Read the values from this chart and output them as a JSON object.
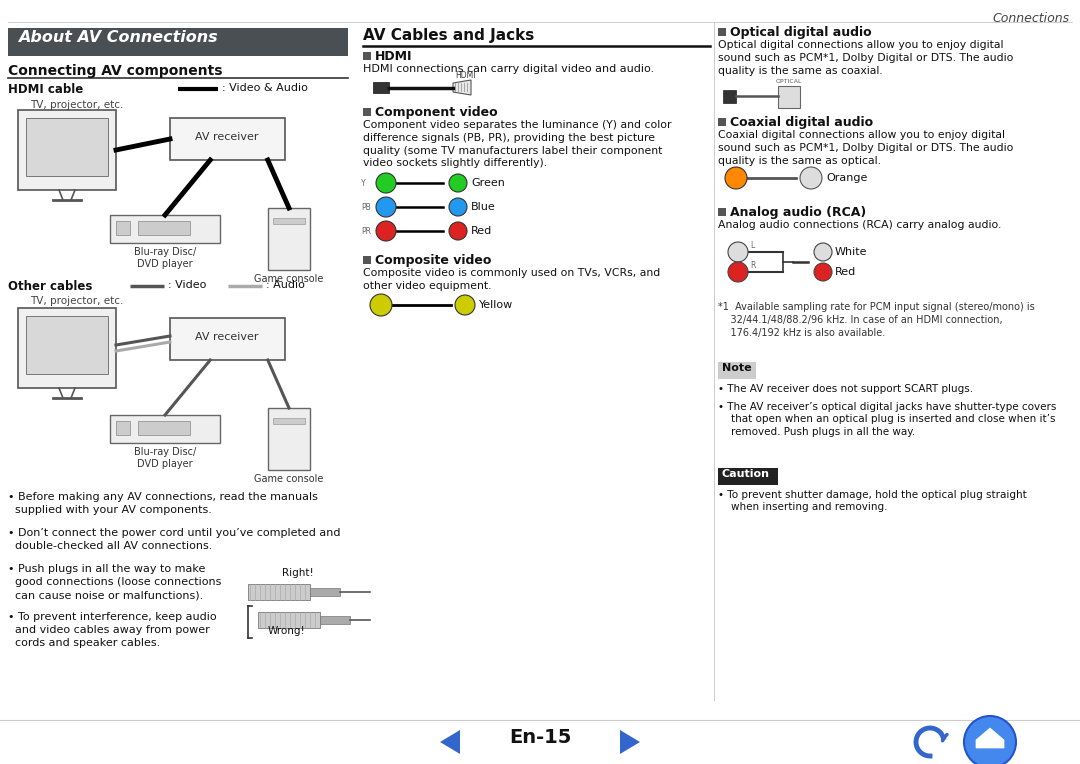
{
  "bg_color": "#ffffff",
  "header_text": "Connections",
  "page_number": "En-15",
  "section1_title": "About AV Connections",
  "section1_bg": "#4a4f54",
  "section1_text_color": "#ffffff",
  "subsection1_title": "Connecting AV components",
  "hdmi_cable_label": "HDMI cable",
  "hdmi_legend": ": Video & Audio",
  "tv_label": "TV, projector, etc.",
  "av_receiver_label": "AV receiver",
  "bluray_label": "Blu-ray Disc/\nDVD player",
  "game_console_label": "Game console",
  "other_cables_label": "Other cables",
  "other_video_legend": ": Video",
  "other_audio_legend": ": Audio",
  "bullet1": "Before making any AV connections, read the manuals\nsupplied with your AV components.",
  "bullet2": "Don’t connect the power cord until you’ve completed and\ndouble-checked all AV connections.",
  "bullet3": "Push plugs in all the way to make\ngood connections (loose connections\ncan cause noise or malfunctions).",
  "bullet4": "To prevent interference, keep audio\nand video cables away from power\ncords and speaker cables.",
  "right_label": "Right!",
  "wrong_label": "Wrong!",
  "section2_title": "AV Cables and Jacks",
  "hdmi_section": "HDMI",
  "hdmi_desc": "HDMI connections can carry digital video and audio.",
  "component_section": "Component video",
  "component_desc": "Component video separates the luminance (Y) and color\ndifference signals (PB, PR), providing the best picture\nquality (some TV manufacturers label their component\nvideo sockets slightly differently).",
  "component_green": "Green",
  "component_blue": "Blue",
  "component_red": "Red",
  "composite_section": "Composite video",
  "composite_desc": "Composite video is commonly used on TVs, VCRs, and\nother video equipment.",
  "composite_yellow": "Yellow",
  "optical_section": "Optical digital audio",
  "optical_desc": "Optical digital connections allow you to enjoy digital\nsound such as PCM*1, Dolby Digital or DTS. The audio\nquality is the same as coaxial.",
  "coaxial_section": "Coaxial digital audio",
  "coaxial_desc": "Coaxial digital connections allow you to enjoy digital\nsound such as PCM*1, Dolby Digital or DTS. The audio\nquality is the same as optical.",
  "coaxial_color": "Orange",
  "analog_section": "Analog audio (RCA)",
  "analog_desc": "Analog audio connections (RCA) carry analog audio.",
  "analog_white": "White",
  "analog_red": "Red",
  "footnote": "*1  Available sampling rate for PCM input signal (stereo/mono) is\n    32/44.1/48/88.2/96 kHz. In case of an HDMI connection,\n    176.4/192 kHz is also available.",
  "note_label": "Note",
  "note_bg": "#cccccc",
  "note1": "• The AV receiver does not support SCART plugs.",
  "note2": "• The AV receiver’s optical digital jacks have shutter-type covers\n  that open when an optical plug is inserted and close when it’s\n  removed. Push plugs in all the way.",
  "caution_label": "Caution",
  "caution_bg": "#222222",
  "caution_text_color": "#ffffff",
  "caution1": "• To prevent shutter damage, hold the optical plug straight\n  when inserting and removing.",
  "bottom_bg": "#ffffff",
  "nav_color": "#3366cc"
}
